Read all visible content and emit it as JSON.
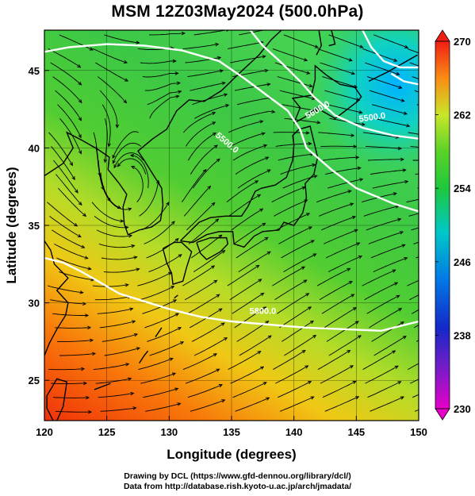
{
  "title": "MSM 12Z03May2024 (500.0hPa)",
  "axes": {
    "xlabel": "Longitude (degrees)",
    "ylabel": "Latitude  (degrees)",
    "xticks": [
      "120",
      "125",
      "130",
      "135",
      "140",
      "145",
      "150"
    ],
    "yticks": [
      "25",
      "30",
      "35",
      "40",
      "45"
    ],
    "xlim": [
      120,
      150
    ],
    "ylim": [
      22.4,
      47.6
    ]
  },
  "colorbar": {
    "min_label": "230",
    "max_label": "270",
    "ticks": [
      "270",
      "262",
      "254",
      "246",
      "238",
      "230"
    ],
    "range": [
      230,
      270
    ],
    "unit_hint": "temperature (K)"
  },
  "contours": [
    {
      "label": "5500.0",
      "label_positions": [
        "5500.0",
        "5500.0"
      ]
    },
    {
      "label": "5600.0",
      "label_positions": [
        "5600.0"
      ]
    },
    {
      "label": "5800.0",
      "label_positions": [
        "5800.0"
      ]
    }
  ],
  "credit": {
    "line1": "Drawing by DCL (https://www.gfd-dennou.org/library/dcl/)",
    "line2": "Data from http://database.rish.kyoto-u.ac.jp/arch/jmadata/"
  },
  "colors": {
    "cold": "#00aaff",
    "mid": "#30c830",
    "warm": "#ff4400",
    "contour": "#ffffff"
  }
}
